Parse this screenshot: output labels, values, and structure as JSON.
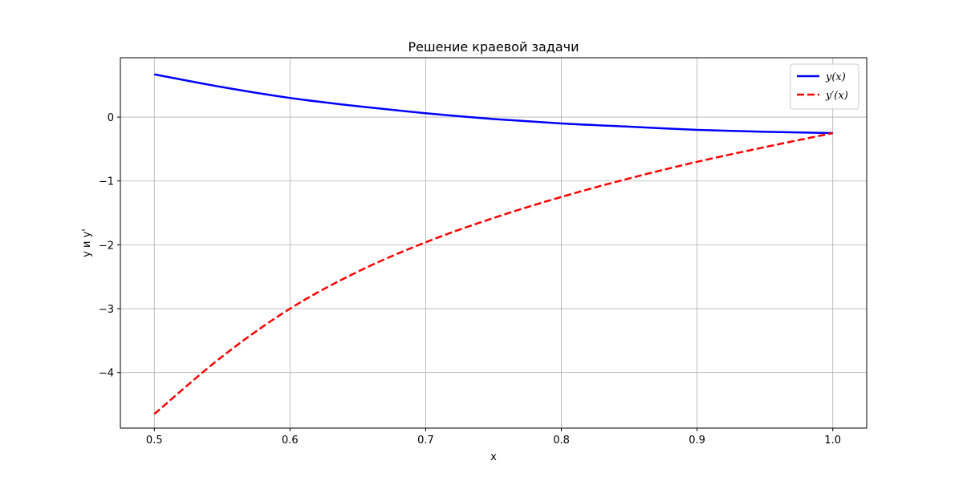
{
  "chart_data": {
    "type": "line",
    "title": "Решение краевой задачи",
    "xlabel": "x",
    "ylabel": "y и y'",
    "xlim": [
      0.475,
      1.025
    ],
    "ylim": [
      -4.87,
      0.93
    ],
    "x_ticks": [
      0.5,
      0.6,
      0.7,
      0.8,
      0.9,
      1.0
    ],
    "x_tick_labels": [
      "0.5",
      "0.6",
      "0.7",
      "0.8",
      "0.9",
      "1.0"
    ],
    "y_ticks": [
      0,
      -1,
      -2,
      -3,
      -4
    ],
    "y_tick_labels": [
      "0",
      "−1",
      "−2",
      "−3",
      "−4"
    ],
    "grid": true,
    "legend_position": "top-right",
    "series": [
      {
        "name": "y(x)",
        "color": "#0000ff",
        "style": "solid",
        "x": [
          0.5,
          0.55,
          0.6,
          0.65,
          0.7,
          0.75,
          0.8,
          0.85,
          0.9,
          0.95,
          1.0
        ],
        "y": [
          0.67,
          0.47,
          0.3,
          0.17,
          0.06,
          -0.03,
          -0.1,
          -0.15,
          -0.2,
          -0.23,
          -0.25
        ]
      },
      {
        "name": "y′(x)",
        "color": "#ff0000",
        "style": "dashed",
        "x": [
          0.5,
          0.55,
          0.6,
          0.65,
          0.7,
          0.75,
          0.8,
          0.85,
          0.9,
          0.95,
          1.0
        ],
        "y": [
          -4.65,
          -3.75,
          -3.0,
          -2.42,
          -1.96,
          -1.58,
          -1.25,
          -0.96,
          -0.7,
          -0.47,
          -0.25
        ]
      }
    ]
  }
}
